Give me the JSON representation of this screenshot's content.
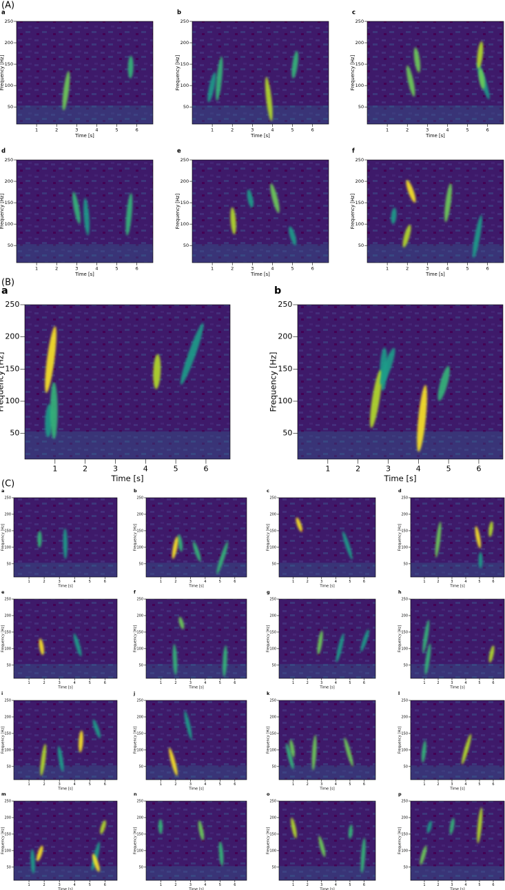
{
  "sections": [
    {
      "label": "(A)",
      "panels": [
        "a",
        "b",
        "c",
        "d",
        "e",
        "f"
      ]
    },
    {
      "label": "(B)",
      "panels": [
        "a",
        "b"
      ]
    },
    {
      "label": "(C)",
      "panels": [
        "a",
        "b",
        "c",
        "d",
        "e",
        "f",
        "g",
        "h",
        "i",
        "j",
        "k",
        "l",
        "m",
        "n",
        "o",
        "p"
      ]
    }
  ],
  "axes": {
    "xlabel": "Time [s]",
    "ylabel": "Frequency [Hz]",
    "xlim": [
      0,
      6.8
    ],
    "ylim": [
      10,
      250
    ],
    "xticks": [
      1,
      2,
      3,
      4,
      5,
      6
    ],
    "yticks": [
      50,
      100,
      150,
      200,
      250
    ]
  }
}
